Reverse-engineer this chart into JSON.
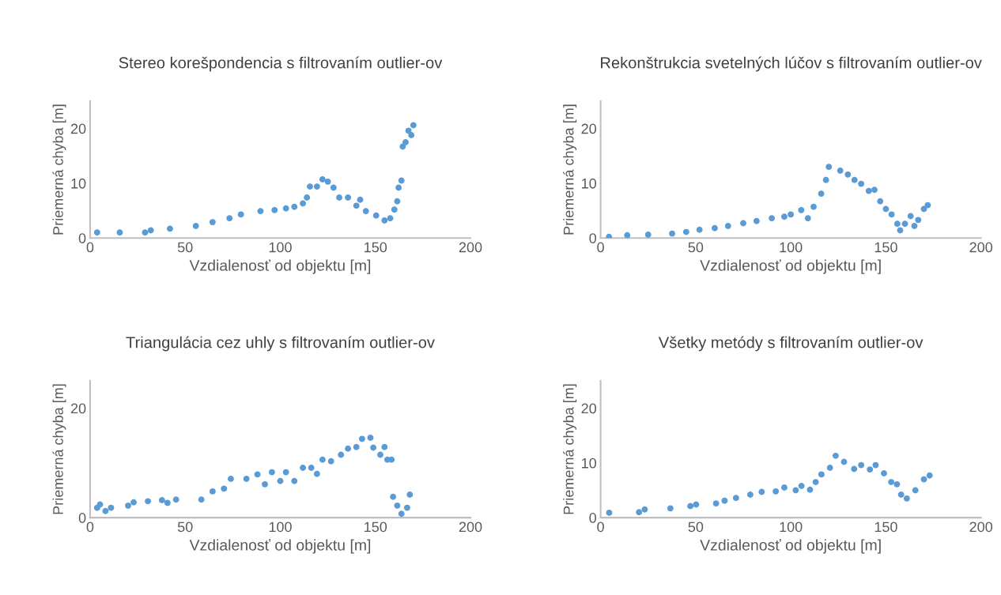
{
  "chart_data": [
    {
      "type": "scatter",
      "title": "Stereo korešpondencia s filtrovaním outlier-ov",
      "xlabel": "Vzdialenosť od objektu [m]",
      "ylabel": "Priemerná chyba [m]",
      "xlim": [
        0,
        200
      ],
      "xticks": [
        0,
        50,
        100,
        150,
        200
      ],
      "ylim": [
        0,
        25
      ],
      "yticks": [
        0,
        10,
        20
      ],
      "grid": false,
      "legend": false,
      "marker": "circle",
      "series": [
        {
          "color": "#5b9bd5",
          "x": [
            3.7,
            15.6,
            28.9,
            31.9,
            42,
            55.6,
            64.4,
            73.3,
            79.3,
            89.6,
            97,
            103,
            107.4,
            111.9,
            114,
            115.6,
            119.3,
            122.2,
            125,
            128,
            131,
            135.6,
            140,
            142,
            145,
            150.4,
            154.8,
            157.8,
            160,
            161.5,
            162.2,
            163.7,
            164.4,
            165.9,
            167.4,
            168.9,
            170
          ],
          "values": [
            1.0,
            1.0,
            1.0,
            1.4,
            1.7,
            2.2,
            2.9,
            3.6,
            4.3,
            4.9,
            5.1,
            5.4,
            5.7,
            6.3,
            7.4,
            9.4,
            9.4,
            10.7,
            10.3,
            9.2,
            7.4,
            7.4,
            5.9,
            7.0,
            4.9,
            4.1,
            3.2,
            3.6,
            5.2,
            6.7,
            9.2,
            10.5,
            16.7,
            17.5,
            19.6,
            18.8,
            20.6
          ]
        }
      ]
    },
    {
      "type": "scatter",
      "title": "Rekonštrukcia svetelných lúčov s filtrovaním outlier-ov",
      "xlabel": "Vzdialenosť od objektu [m]",
      "ylabel": "Priemerná chyba [m]",
      "xlim": [
        0,
        200
      ],
      "xticks": [
        0,
        50,
        100,
        150,
        200
      ],
      "ylim": [
        0,
        25
      ],
      "yticks": [
        0,
        10,
        20
      ],
      "grid": false,
      "legend": false,
      "marker": "circle",
      "series": [
        {
          "color": "#5b9bd5",
          "x": [
            4.4,
            14,
            25,
            37.6,
            45,
            52,
            60,
            67,
            75,
            82,
            90,
            96.6,
            100,
            105.5,
            109,
            112,
            116,
            118.5,
            120,
            126,
            130,
            133.5,
            137,
            141,
            144,
            147,
            150,
            153,
            156,
            157.5,
            160,
            163,
            165,
            167,
            170,
            172
          ],
          "values": [
            0.2,
            0.5,
            0.6,
            0.8,
            1.1,
            1.5,
            1.8,
            2.2,
            2.7,
            3.1,
            3.6,
            3.9,
            4.3,
            5.1,
            3.6,
            5.7,
            8.1,
            10.6,
            13.0,
            12.3,
            11.6,
            10.6,
            9.9,
            8.6,
            8.8,
            6.7,
            5.3,
            4.3,
            2.6,
            1.4,
            2.6,
            4.0,
            2.2,
            3.3,
            5.3,
            6.0
          ]
        }
      ]
    },
    {
      "type": "scatter",
      "title": "Triangulácia cez uhly s filtrovaním outlier-ov",
      "xlabel": "Vzdialenosť od objektu [m]",
      "ylabel": "Priemerná chyba [m]",
      "xlim": [
        0,
        200
      ],
      "xticks": [
        0,
        50,
        100,
        150,
        200
      ],
      "ylim": [
        0,
        25
      ],
      "yticks": [
        0,
        20
      ],
      "grid": false,
      "legend": false,
      "marker": "circle",
      "series": [
        {
          "color": "#5b9bd5",
          "x": [
            3.7,
            5.2,
            8.1,
            11,
            20,
            22.9,
            30.4,
            37.8,
            40.7,
            45.2,
            58.5,
            64.4,
            70.4,
            74,
            82.2,
            88,
            91.9,
            95.6,
            100,
            103,
            107.4,
            111.9,
            116.3,
            119.3,
            122.2,
            126.7,
            131.9,
            135.6,
            140,
            143,
            147.4,
            148.9,
            152.6,
            154.8,
            156.3,
            158.5,
            159.3,
            161.5,
            163.7,
            166.7,
            168.1
          ],
          "values": [
            1.8,
            2.4,
            1.2,
            1.8,
            2.2,
            2.8,
            3.0,
            3.2,
            2.7,
            3.3,
            3.3,
            4.8,
            5.3,
            7.1,
            7.1,
            7.9,
            6.1,
            8.3,
            6.7,
            8.3,
            6.7,
            9.1,
            9.1,
            8.0,
            10.6,
            10.3,
            11.5,
            12.6,
            12.9,
            14.4,
            14.6,
            12.8,
            11.5,
            12.9,
            10.6,
            10.6,
            3.8,
            2.2,
            0.7,
            1.8,
            4.2
          ]
        }
      ]
    },
    {
      "type": "scatter",
      "title": "Všetky metódy s filtrovaním outlier-ov",
      "xlabel": "Vzdialenosť od objektu [m]",
      "ylabel": "Priemerná chyba [m]",
      "xlim": [
        0,
        200
      ],
      "xticks": [
        0,
        50,
        100,
        150,
        200
      ],
      "ylim": [
        0,
        25
      ],
      "yticks": [
        0,
        10,
        20
      ],
      "grid": false,
      "legend": false,
      "marker": "circle",
      "series": [
        {
          "color": "#5b9bd5",
          "x": [
            4.5,
            20.2,
            23.2,
            36.7,
            47.2,
            50.2,
            60.7,
            65.2,
            71.2,
            78.7,
            84.7,
            92.1,
            96.6,
            102.6,
            105.6,
            110.1,
            113.1,
            116.1,
            120.6,
            123.6,
            128,
            133.3,
            137,
            141.6,
            144.6,
            149,
            152.8,
            155.8,
            158,
            161,
            165.5,
            170,
            173
          ],
          "values": [
            0.9,
            1.0,
            1.5,
            1.7,
            2.1,
            2.4,
            2.6,
            3.1,
            3.6,
            4.2,
            4.7,
            4.8,
            5.5,
            5.0,
            5.8,
            5.1,
            6.5,
            7.9,
            9.1,
            11.3,
            10.2,
            8.9,
            9.6,
            8.8,
            9.6,
            8.1,
            6.5,
            6.1,
            4.2,
            3.5,
            5.0,
            7.0,
            7.7
          ]
        }
      ]
    }
  ]
}
